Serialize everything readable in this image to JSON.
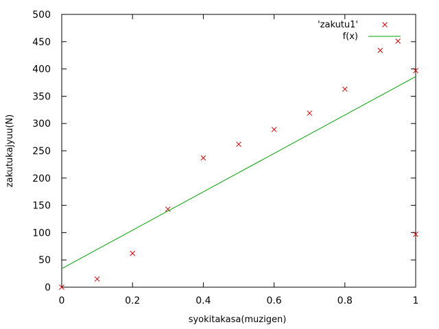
{
  "chart_data": {
    "type": "scatter",
    "xlabel": "syokitakasa(muzigen)",
    "ylabel": "zakutukajyuu(N)",
    "xlim": [
      0,
      1
    ],
    "ylim": [
      0,
      500
    ],
    "xticks": [
      "0",
      "0.2",
      "0.4",
      "0.6",
      "0.8",
      "1"
    ],
    "xtick_values": [
      0,
      0.2,
      0.4,
      0.6,
      0.8,
      1
    ],
    "yticks": [
      "0",
      "50",
      "100",
      "150",
      "200",
      "250",
      "300",
      "350",
      "400",
      "450",
      "500"
    ],
    "ytick_values": [
      0,
      50,
      100,
      150,
      200,
      250,
      300,
      350,
      400,
      450,
      500
    ],
    "grid": false,
    "legend_position": "top-right",
    "series": [
      {
        "name": "'zakutu1'",
        "kind": "points",
        "marker": "x",
        "color": "#cc0000",
        "x": [
          0,
          0.1,
          0.2,
          0.3,
          0.4,
          0.5,
          0.6,
          0.7,
          0.8,
          0.9,
          0.95,
          1.0,
          1.0
        ],
        "y": [
          0,
          15,
          62,
          143,
          237,
          262,
          289,
          319,
          363,
          434,
          451,
          397,
          97
        ]
      },
      {
        "name": "f(x)",
        "kind": "line",
        "color": "#00a000",
        "x": [
          0,
          1
        ],
        "y": [
          34,
          386
        ]
      }
    ]
  }
}
